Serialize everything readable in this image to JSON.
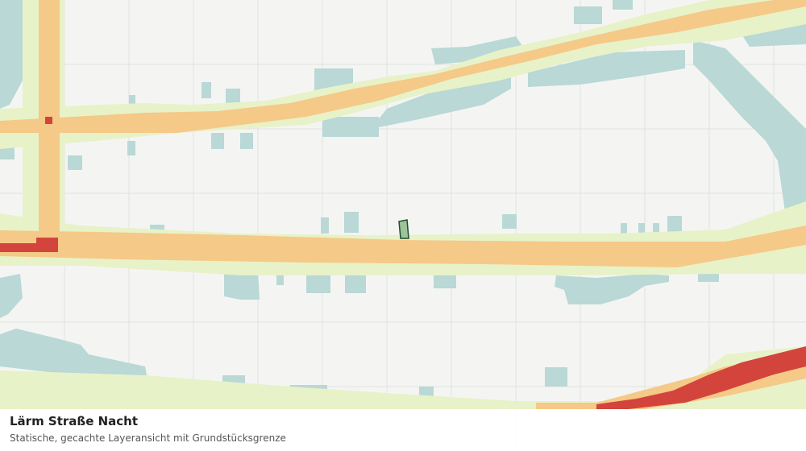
{
  "title": "Lärm Straße Nacht",
  "subtitle": "Statische, gecachte Layeransicht mit Grundstücksgrenze"
}
